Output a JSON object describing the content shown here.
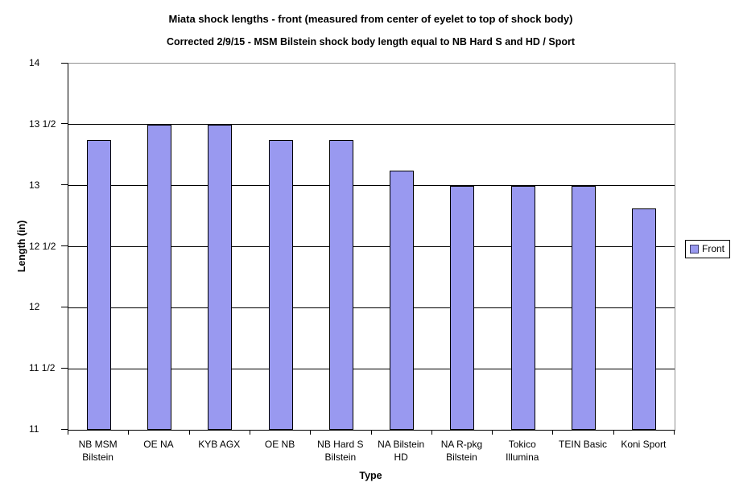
{
  "chart_data": {
    "type": "bar",
    "title": "Miata shock lengths - front (measured from center of eyelet to top of shock body)",
    "subtitle": "Corrected 2/9/15 - MSM Bilstein shock body length equal to NB Hard S and HD / Sport",
    "xlabel": "Type",
    "ylabel": "Length (in)",
    "categories": [
      "NB MSM\nBilstein",
      "OE NA",
      "KYB AGX",
      "OE NB",
      "NB Hard S\nBilstein",
      "NA Bilstein\nHD",
      "NA R-pkg\nBilstein",
      "Tokico\nIllumina",
      "TEIN Basic",
      "Koni Sport"
    ],
    "series": [
      {
        "name": "Front",
        "values": [
          13.375,
          13.5,
          13.5,
          13.375,
          13.375,
          13.125,
          13,
          13,
          13,
          12.8125
        ]
      }
    ],
    "ylim": [
      11,
      14
    ],
    "yticks": [
      {
        "value": 14,
        "label": "14"
      },
      {
        "value": 13.5,
        "label": "13 1/2"
      },
      {
        "value": 13,
        "label": "13"
      },
      {
        "value": 12.5,
        "label": "12 1/2"
      },
      {
        "value": 12,
        "label": "12"
      },
      {
        "value": 11.5,
        "label": "11 1/2"
      },
      {
        "value": 11,
        "label": "11"
      }
    ],
    "grid": true,
    "legend": {
      "position": "right",
      "entries": [
        "Front"
      ]
    },
    "colors": {
      "bar_fill": "#9999F0",
      "bar_border": "#000000",
      "gridline": "#000000",
      "plot_border": "#909090",
      "axis": "#000000",
      "background": "#FFFFFF"
    }
  }
}
